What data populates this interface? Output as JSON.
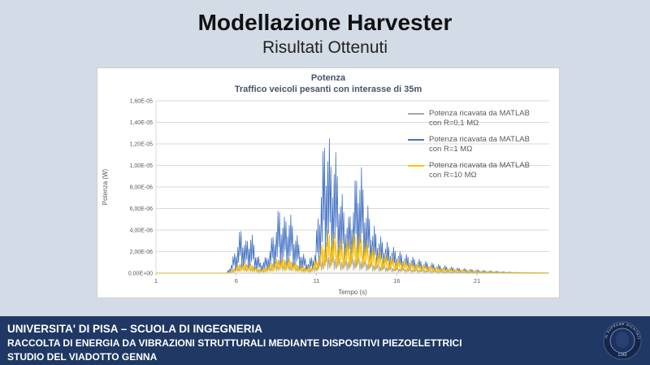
{
  "slide": {
    "title": "Modellazione Harvester",
    "subtitle": "Risultati Ottenuti"
  },
  "chart_data": {
    "type": "line",
    "title": "Potenza",
    "subtitle": "Traffico veicoli pesanti con interasse di 35m",
    "xlabel": "Tempo (s)",
    "ylabel": "Potenza (W)",
    "xlim": [
      1,
      25.5
    ],
    "ylim": [
      0,
      1.6e-05
    ],
    "x_ticks": [
      1,
      6,
      11,
      16,
      21
    ],
    "y_ticks": [
      0,
      2e-06,
      4e-06,
      6e-06,
      8e-06,
      1e-05,
      1.2e-05,
      1.4e-05,
      1.6e-05
    ],
    "y_tick_labels": [
      "0,00E+00",
      "2,00E-06",
      "4,00E-06",
      "6,00E-06",
      "8,00E-06",
      "1,00E-05",
      "1,20E-05",
      "1,40E-05",
      "1,60E-05"
    ],
    "grid": true,
    "legend_position": "top-right-inside",
    "sample_dt": 0.05,
    "spike_pattern": [
      0.18,
      0.75,
      0.28,
      1.0,
      0.4,
      0.88,
      0.12,
      0.6
    ],
    "series": [
      {
        "name": "Potenza ricavata da MATLAB con R=0,1 MΩ",
        "legend_lines": [
          "Potenza ricavata da MATLAB",
          "con R=0,1 MΩ"
        ],
        "color": "#a6a6a6",
        "phase": 0,
        "envelope": [
          [
            1,
            0
          ],
          [
            5.4,
            0
          ],
          [
            5.7,
            3e-07
          ],
          [
            6.3,
            1.2e-06
          ],
          [
            6.9,
            1e-06
          ],
          [
            7.5,
            4e-07
          ],
          [
            8.0,
            8e-07
          ],
          [
            8.6,
            1.6e-06
          ],
          [
            9.3,
            1.5e-06
          ],
          [
            10.0,
            8e-07
          ],
          [
            10.6,
            5e-07
          ],
          [
            11.2,
            1.5e-06
          ],
          [
            11.6,
            2.6e-06
          ],
          [
            12.1,
            2.3e-06
          ],
          [
            12.7,
            1.6e-06
          ],
          [
            13.4,
            2.2e-06
          ],
          [
            14.0,
            1.6e-06
          ],
          [
            14.8,
            1.1e-06
          ],
          [
            16.0,
            7e-07
          ],
          [
            17.5,
            4.5e-07
          ],
          [
            19.0,
            2.5e-07
          ],
          [
            21.0,
            1.2e-07
          ],
          [
            23.0,
            5e-08
          ],
          [
            25.3,
            2e-08
          ]
        ]
      },
      {
        "name": "Potenza ricavata da MATLAB con R=1 MΩ",
        "legend_lines": [
          "Potenza ricavata da MATLAB",
          "con R=1 MΩ"
        ],
        "color": "#4472c4",
        "phase": 3,
        "envelope": [
          [
            1,
            0
          ],
          [
            5.4,
            0
          ],
          [
            5.7,
            1e-06
          ],
          [
            6.0,
            2.6e-06
          ],
          [
            6.3,
            4.4e-06
          ],
          [
            6.6,
            3e-06
          ],
          [
            6.9,
            4.1e-06
          ],
          [
            7.2,
            2.4e-06
          ],
          [
            7.5,
            1.1e-06
          ],
          [
            7.9,
            1.6e-06
          ],
          [
            8.3,
            3.8e-06
          ],
          [
            8.7,
            6.4e-06
          ],
          [
            9.0,
            5.2e-06
          ],
          [
            9.3,
            5.9e-06
          ],
          [
            9.7,
            4e-06
          ],
          [
            10.1,
            2e-06
          ],
          [
            10.5,
            1.1e-06
          ],
          [
            10.9,
            2.2e-06
          ],
          [
            11.2,
            7.5e-06
          ],
          [
            11.5,
            1.32e-05
          ],
          [
            11.7,
            1.38e-05
          ],
          [
            11.9,
            1.12e-05
          ],
          [
            12.1,
            1.22e-05
          ],
          [
            12.4,
            9.2e-06
          ],
          [
            12.7,
            6.4e-06
          ],
          [
            13.0,
            5.2e-06
          ],
          [
            13.3,
            7.5e-06
          ],
          [
            13.6,
            1.08e-05
          ],
          [
            13.8,
            9.8e-06
          ],
          [
            14.1,
            6.8e-06
          ],
          [
            14.5,
            4.6e-06
          ],
          [
            15.0,
            3.4e-06
          ],
          [
            15.6,
            2.6e-06
          ],
          [
            16.2,
            2e-06
          ],
          [
            17.0,
            1.5e-06
          ],
          [
            17.8,
            1.1e-06
          ],
          [
            18.6,
            8e-07
          ],
          [
            19.5,
            5.5e-07
          ],
          [
            20.5,
            3.8e-07
          ],
          [
            21.5,
            2.5e-07
          ],
          [
            22.5,
            1.5e-07
          ],
          [
            23.5,
            8e-08
          ],
          [
            25.3,
            3e-08
          ]
        ]
      },
      {
        "name": "Potenza ricavata da MATLAB con R=10 MΩ",
        "legend_lines": [
          "Potenza ricavata da MATLAB",
          "con R=10 MΩ"
        ],
        "color": "#ffc000",
        "phase": 5,
        "envelope": [
          [
            1,
            0
          ],
          [
            5.4,
            0
          ],
          [
            5.8,
            4e-07
          ],
          [
            6.3,
            1e-06
          ],
          [
            6.9,
            9e-07
          ],
          [
            7.5,
            3.5e-07
          ],
          [
            8.1,
            9e-07
          ],
          [
            8.7,
            1.5e-06
          ],
          [
            9.3,
            1.4e-06
          ],
          [
            10.0,
            7e-07
          ],
          [
            10.6,
            6e-07
          ],
          [
            11.1,
            1.6e-06
          ],
          [
            11.5,
            3.6e-06
          ],
          [
            11.8,
            4.1e-06
          ],
          [
            12.2,
            3.7e-06
          ],
          [
            12.6,
            3e-06
          ],
          [
            13.0,
            3.3e-06
          ],
          [
            13.5,
            4e-06
          ],
          [
            13.9,
            3.4e-06
          ],
          [
            14.4,
            2.6e-06
          ],
          [
            15.0,
            2e-06
          ],
          [
            15.8,
            1.5e-06
          ],
          [
            16.6,
            1.15e-06
          ],
          [
            17.5,
            8.5e-07
          ],
          [
            18.5,
            6e-07
          ],
          [
            19.5,
            4e-07
          ],
          [
            21.0,
            2.2e-07
          ],
          [
            22.5,
            1.1e-07
          ],
          [
            25.3,
            3e-08
          ]
        ]
      }
    ]
  },
  "footer": {
    "line1": "UNIVERSITA' DI PISA – SCUOLA DI INGEGNERIA",
    "line2": "RACCOLTA DI ENERGIA DA VIBRAZIONI STRUTTURALI MEDIANTE DISPOSITIVI PIEZOELETTRICI",
    "line3": "STUDIO DEL VIADOTTO GENNA",
    "seal": {
      "ring_text": "IN SUPREME DIGNITATIS",
      "year": "1343"
    }
  }
}
